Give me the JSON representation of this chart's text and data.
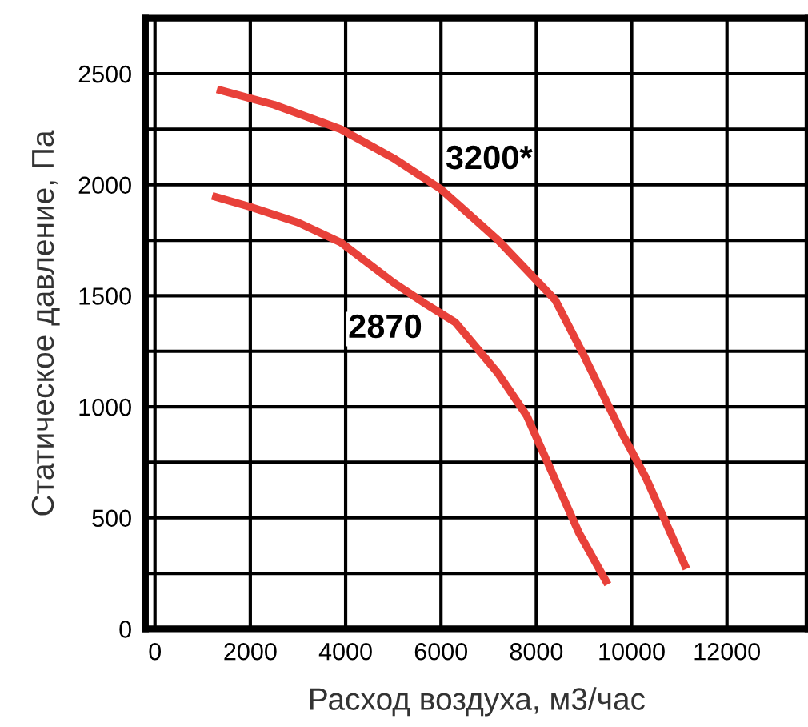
{
  "chart_data": {
    "type": "line",
    "xlabel": "Расход воздуха, м3/час",
    "ylabel": "Статическое давление, Па",
    "xlim": [
      -200,
      13700
    ],
    "ylim": [
      0,
      2750
    ],
    "xticks": [
      0,
      2000,
      4000,
      6000,
      8000,
      10000,
      12000
    ],
    "yticks": [
      0,
      {
        "value": 250,
        "label": null
      },
      500,
      {
        "value": 750,
        "label": null
      },
      1000,
      {
        "value": 1250,
        "label": null
      },
      1500,
      {
        "value": 1750,
        "label": null
      },
      2000,
      {
        "value": 2250,
        "label": null
      },
      2500
    ],
    "grid": true,
    "marker": "none",
    "line_style": "solid",
    "series": [
      {
        "color": "#e8413a",
        "x": [
          1300,
          2500,
          3900,
          5000,
          6000,
          7200,
          8400,
          9000,
          9800,
          10300,
          11150
        ],
        "values": [
          2430,
          2360,
          2250,
          2120,
          1980,
          1750,
          1480,
          1230,
          880,
          680,
          270
        ]
      },
      {
        "color": "#e8413a",
        "x": [
          1200,
          2000,
          3000,
          3900,
          5000,
          5700,
          6300,
          7200,
          7800,
          8400,
          8900,
          9500
        ],
        "values": [
          1950,
          1900,
          1830,
          1740,
          1560,
          1460,
          1380,
          1150,
          960,
          670,
          430,
          200
        ]
      }
    ],
    "annotations": [
      {
        "text": "3200*",
        "x": 6000,
        "y": 1980
      },
      {
        "text": "2870",
        "x": 5700,
        "y": 1460
      }
    ]
  }
}
